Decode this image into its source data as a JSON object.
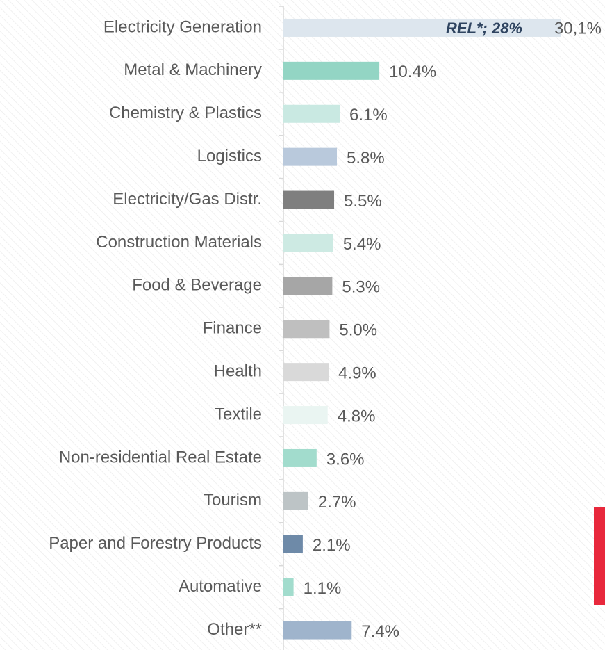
{
  "chart_data": {
    "type": "bar",
    "orientation": "horizontal",
    "categories": [
      "Electricity Generation",
      "Metal & Machinery",
      "Chemistry & Plastics",
      "Logistics",
      "Electricity/Gas Distr.",
      "Construction Materials",
      "Food & Beverage",
      "Finance",
      "Health",
      "Textile",
      "Non-residential Real Estate",
      "Tourism",
      "Paper and Forestry Products",
      "Automative",
      "Other**"
    ],
    "values": [
      30.1,
      10.4,
      6.1,
      5.8,
      5.5,
      5.4,
      5.3,
      5.0,
      4.9,
      4.8,
      3.6,
      2.7,
      2.1,
      1.1,
      7.4
    ],
    "value_labels": [
      "30,1%",
      "10.4%",
      "6.1%",
      "5.8%",
      "5.5%",
      "5.4%",
      "5.3%",
      "5.0%",
      "4.9%",
      "4.8%",
      "3.6%",
      "2.7%",
      "2.1%",
      "1.1%",
      "7.4%"
    ],
    "colors": [
      "#dde6ee",
      "#93d5c4",
      "#c9e9e2",
      "#b9c9dc",
      "#7f7f7f",
      "#cdeae3",
      "#a6a6a6",
      "#bfbfbf",
      "#d9d9d9",
      "#eaf5f2",
      "#a2dccd",
      "#bdc4c6",
      "#6e8aa8",
      "#a2dccd",
      "#9fb4cc"
    ],
    "annotation": "REL*; 28%"
  }
}
